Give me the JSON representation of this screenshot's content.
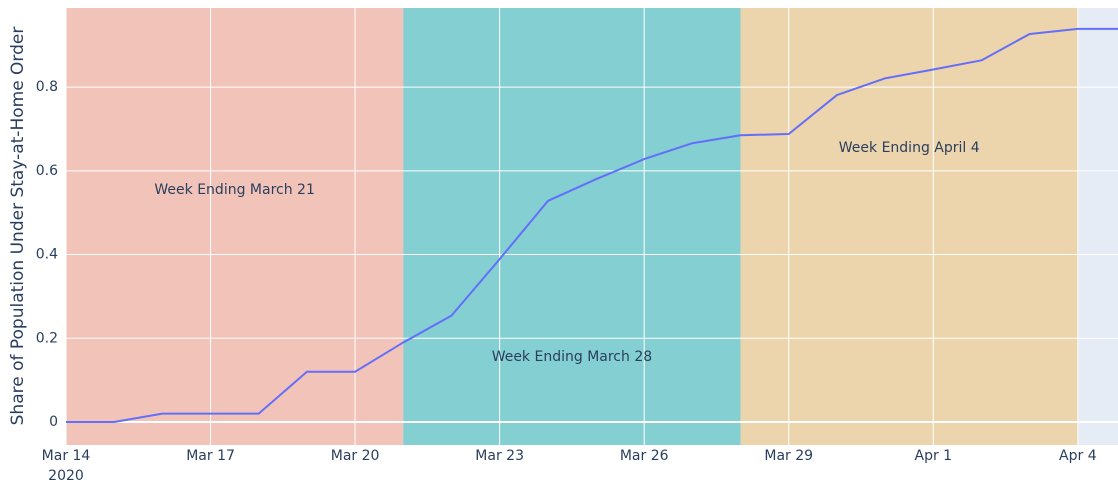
{
  "chart_data": {
    "type": "line",
    "y_label": "Share of Population Under Stay-at-Home Order",
    "x": [
      "2020-03-14",
      "2020-03-15",
      "2020-03-16",
      "2020-03-17",
      "2020-03-18",
      "2020-03-19",
      "2020-03-20",
      "2020-03-21",
      "2020-03-22",
      "2020-03-23",
      "2020-03-24",
      "2020-03-25",
      "2020-03-26",
      "2020-03-27",
      "2020-03-28",
      "2020-03-29",
      "2020-03-30",
      "2020-03-31",
      "2020-04-01",
      "2020-04-02",
      "2020-04-03",
      "2020-04-04",
      "2020-04-05"
    ],
    "series": [
      {
        "color": "#636efa",
        "values": [
          0,
          0,
          0.02,
          0.02,
          0.02,
          0.12,
          0.12,
          0.19,
          0.254,
          0.389,
          0.528,
          0.58,
          0.628,
          0.666,
          0.685,
          0.688,
          0.781,
          0.821,
          0.842,
          0.864,
          0.927,
          0.939,
          0.939
        ]
      }
    ],
    "bands": [
      {
        "x0": "2020-03-14",
        "x1": "2020-03-21",
        "color": "#f2c4b9",
        "label": "Week Ending March 21"
      },
      {
        "x0": "2020-03-21",
        "x1": "2020-03-28",
        "color": "#84cfd1",
        "label": "Week Ending March 28"
      },
      {
        "x0": "2020-03-28",
        "x1": "2020-04-04",
        "color": "#ecd5ad",
        "label": "Week Ending April 4"
      }
    ],
    "plot_bg": "#e5ecf6",
    "xlim": [
      "2020-03-14",
      "2020-04-04T20:00"
    ],
    "xticks": [
      {
        "value": "2020-03-14",
        "label": "Mar 14"
      },
      {
        "value": "2020-03-17",
        "label": "Mar 17"
      },
      {
        "value": "2020-03-20",
        "label": "Mar 20"
      },
      {
        "value": "2020-03-23",
        "label": "Mar 23"
      },
      {
        "value": "2020-03-26",
        "label": "Mar 26"
      },
      {
        "value": "2020-03-29",
        "label": "Mar 29"
      },
      {
        "value": "2020-04-01",
        "label": "Apr 1"
      },
      {
        "value": "2020-04-04",
        "label": "Apr 4"
      }
    ],
    "x_year": "2020",
    "ylim": [
      -0.055,
      0.989
    ],
    "yticks": [
      0,
      0.2,
      0.4,
      0.6,
      0.8
    ],
    "grid": true
  }
}
